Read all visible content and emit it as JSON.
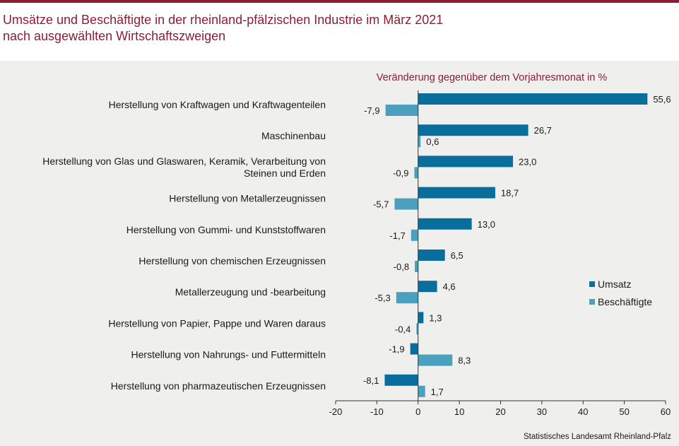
{
  "title": {
    "line1": "Umsätze und Beschäftigte in der rheinland-pfälzischen Industrie im März 2021",
    "line2": "nach ausgewählten Wirtschaftszweigen"
  },
  "subtitle": "Veränderung gegenüber dem Vorjahresmonat in %",
  "source": "Statistisches Landesamt Rheinland-Pfalz",
  "colors": {
    "umsatz": "#0a6e9d",
    "beschaeftigte": "#4ba0be",
    "title": "#8c1d33"
  },
  "chart_data": {
    "type": "bar",
    "orientation": "horizontal",
    "categories": [
      [
        "Herstellung von Kraftwagen und Kraftwagenteilen"
      ],
      [
        "Maschinenbau"
      ],
      [
        "Herstellung von Glas und Glaswaren, Keramik, Verarbeitung von",
        "Steinen und Erden"
      ],
      [
        "Herstellung von Metallerzeugnissen"
      ],
      [
        "Herstellung von Gummi- und Kunststoffwaren"
      ],
      [
        "Herstellung von chemischen Erzeugnissen"
      ],
      [
        "Metallerzeugung und -bearbeitung"
      ],
      [
        "Herstellung von Papier, Pappe und Waren daraus"
      ],
      [
        "Herstellung von Nahrungs- und Futtermitteln"
      ],
      [
        "Herstellung von pharmazeutischen Erzeugnissen"
      ]
    ],
    "series": [
      {
        "name": "Umsatz",
        "color": "#0a6e9d",
        "values": [
          55.6,
          26.7,
          23.0,
          18.7,
          13.0,
          6.5,
          4.6,
          1.3,
          -1.9,
          -8.1
        ],
        "labels": [
          "55,6",
          "26,7",
          "23,0",
          "18,7",
          "13,0",
          "6,5",
          "4,6",
          "1,3",
          "-1,9",
          "-8,1"
        ]
      },
      {
        "name": "Beschäftigte",
        "color": "#4ba0be",
        "values": [
          -7.9,
          0.6,
          -0.9,
          -5.7,
          -1.7,
          -0.8,
          -5.3,
          -0.4,
          8.3,
          1.7
        ],
        "labels": [
          "-7,9",
          "0,6",
          "-0,9",
          "-5,7",
          "-1,7",
          "-0,8",
          "-5,3",
          "-0,4",
          "8,3",
          "1,7"
        ]
      }
    ],
    "xlim": [
      -20,
      60
    ],
    "xticks": [
      -20,
      -10,
      0,
      10,
      20,
      30,
      40,
      50,
      60
    ],
    "xtick_labels": [
      "-20",
      "-10",
      "0",
      "10",
      "20",
      "30",
      "40",
      "50",
      "60"
    ],
    "legend_position": "right",
    "grid": false
  }
}
